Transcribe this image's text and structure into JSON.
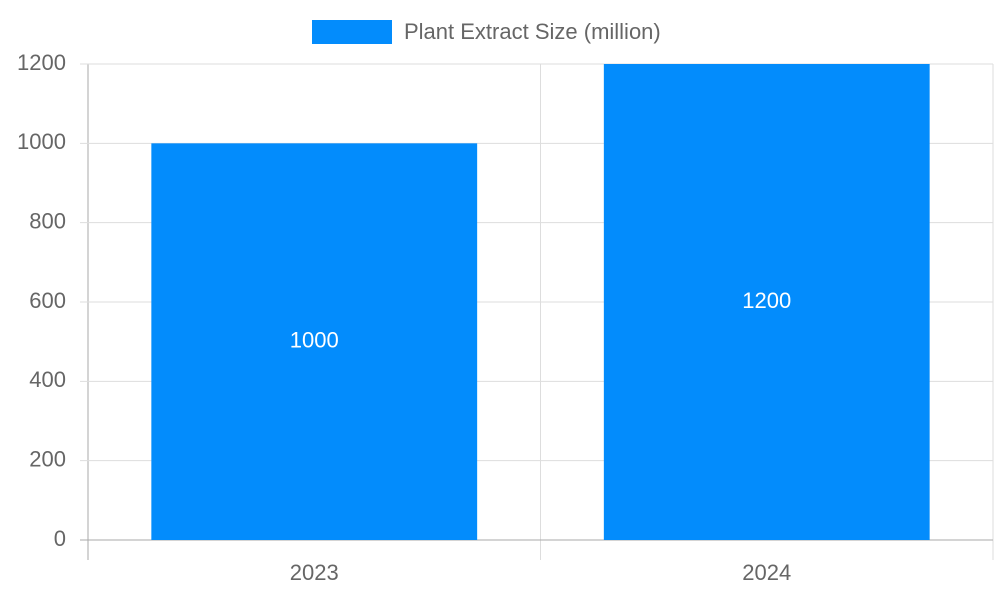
{
  "chart_data": {
    "type": "bar",
    "categories": [
      "2023",
      "2024"
    ],
    "series": [
      {
        "name": "Plant Extract Size (million)",
        "color": "#038cfc",
        "values": [
          1000,
          1200
        ]
      }
    ],
    "ylim": [
      0,
      1200
    ],
    "yticks": [
      0,
      200,
      400,
      600,
      800,
      1000,
      1200
    ],
    "grid": true,
    "legend": "top"
  }
}
